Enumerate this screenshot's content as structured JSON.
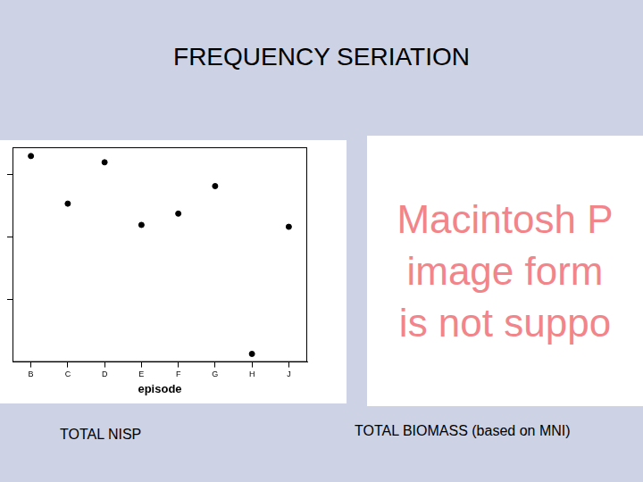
{
  "page": {
    "title": "FREQUENCY SERIATION",
    "captions": [
      "TOTAL NISP",
      "TOTAL BIOMASS (based on MNI)"
    ],
    "placeholder_lines": [
      "Macintosh P",
      "image form",
      "is not suppo"
    ]
  },
  "chart_data": {
    "type": "scatter",
    "x_label": "episode",
    "categories": [
      "B",
      "C",
      "D",
      "E",
      "F",
      "G",
      "H",
      "J"
    ],
    "values": [
      329,
      253,
      319,
      219,
      237,
      281,
      13,
      216
    ],
    "color": "#000000",
    "marker": "circle",
    "ylim": [
      0,
      343
    ],
    "yticks": [
      100,
      200,
      300
    ],
    "grid": false,
    "tick_labels": "x"
  }
}
